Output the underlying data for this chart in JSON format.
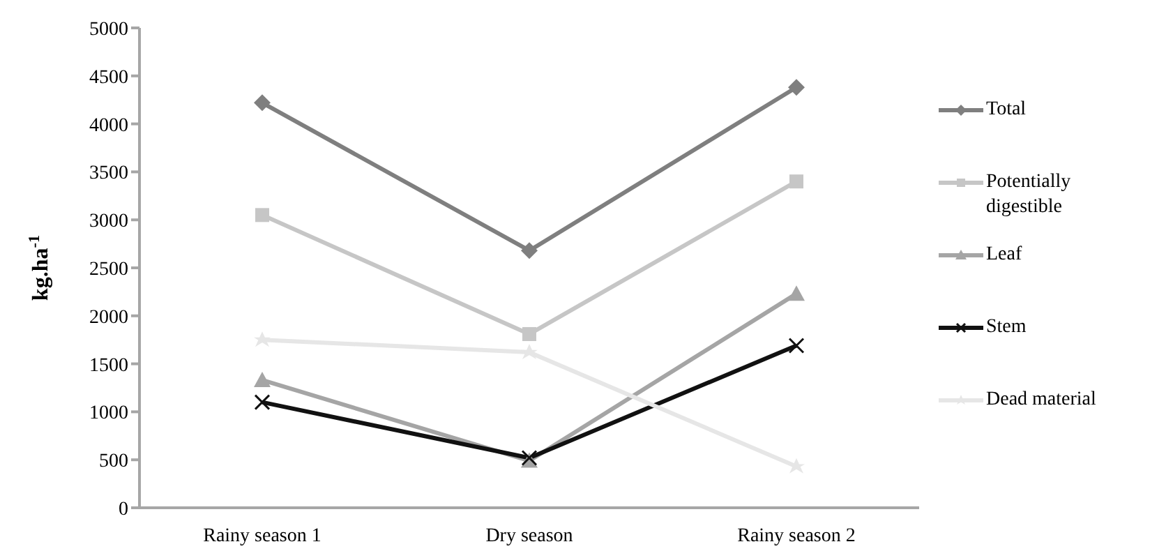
{
  "chart_data": {
    "type": "line",
    "ylabel": "kg.ha$^{-1}$",
    "categories": [
      "Rainy season 1",
      "Dry season",
      "Rainy season 2"
    ],
    "series": [
      {
        "name": "Total",
        "color": "#7f7f7f",
        "marker": "diamond",
        "values": [
          4220,
          2680,
          4380
        ]
      },
      {
        "name": "Potentially digestible",
        "color": "#c6c6c6",
        "marker": "square",
        "values": [
          3050,
          1810,
          3400
        ]
      },
      {
        "name": "Leaf",
        "color": "#a5a5a5",
        "marker": "triangle",
        "values": [
          1330,
          490,
          2230
        ]
      },
      {
        "name": "Stem",
        "color": "#111111",
        "marker": "cross",
        "values": [
          1100,
          520,
          1690
        ]
      },
      {
        "name": "Dead material",
        "color": "#e6e6e6",
        "marker": "star",
        "values": [
          1750,
          1620,
          430
        ]
      }
    ],
    "ylim": [
      0,
      5000
    ],
    "yticks": [
      0,
      500,
      1000,
      1500,
      2000,
      2500,
      3000,
      3500,
      4000,
      4500,
      5000
    ],
    "grid": false,
    "legend": "right",
    "line_style": "solid"
  }
}
